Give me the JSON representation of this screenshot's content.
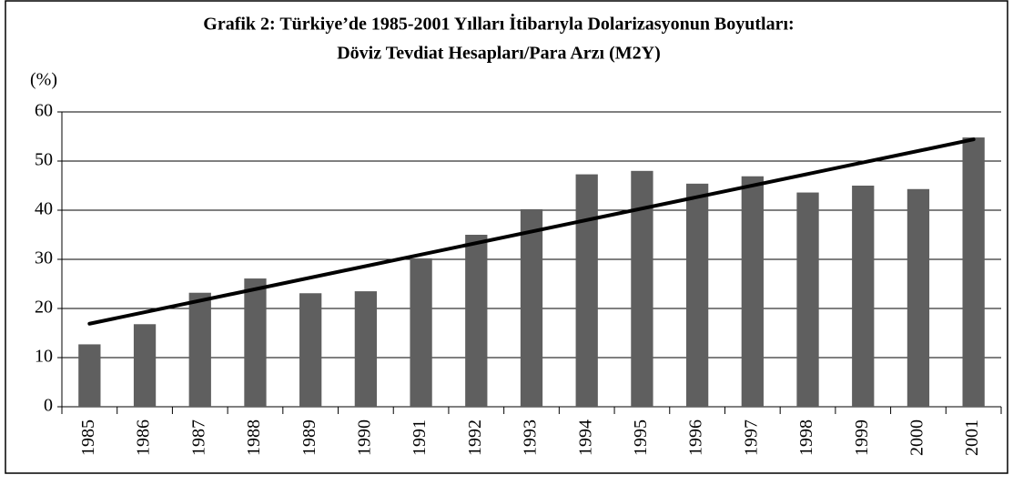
{
  "chart_data": {
    "type": "bar",
    "title": [
      "Grafik  2: Türkiye’de  1985-2001 Yılları İtibarıyla  Dolarizasyonun  Boyutları:",
      "Döviz  Tevdiat  Hesapları/Para  Arzı (M2Y)"
    ],
    "y_label": "(%)",
    "categories": [
      "1985",
      "1986",
      "1987",
      "1988",
      "1989",
      "1990",
      "1991",
      "1992",
      "1993",
      "1994",
      "1995",
      "1996",
      "1997",
      "1998",
      "1999",
      "2000",
      "2001"
    ],
    "values": [
      12.7,
      16.8,
      23.2,
      26.1,
      23.1,
      23.5,
      30.2,
      35.0,
      40.2,
      47.3,
      48.0,
      45.4,
      46.9,
      43.6,
      45.0,
      44.3,
      54.8
    ],
    "color": "#5f5f5f",
    "ylim": [
      0,
      60
    ],
    "yticks": [
      0,
      10,
      20,
      30,
      40,
      50,
      60
    ],
    "grid": true,
    "trendline": true,
    "trendline_color": "#000000"
  }
}
